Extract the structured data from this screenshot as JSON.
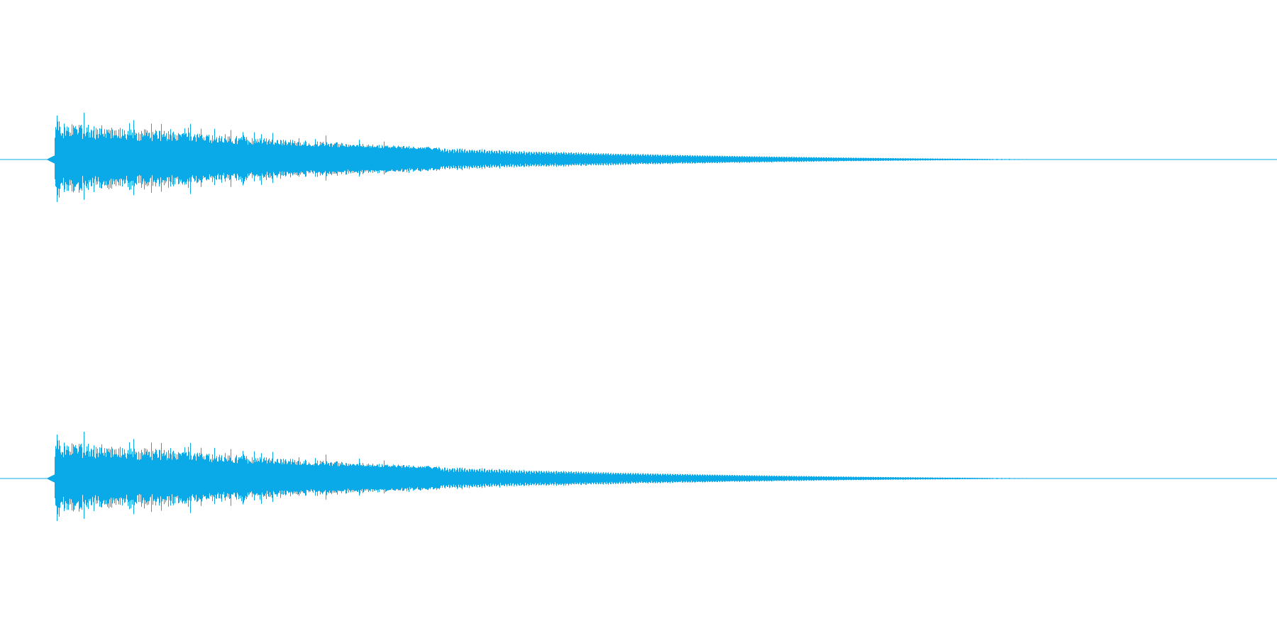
{
  "waveform": {
    "color": "#0aaae8",
    "channel_count": 2,
    "channels": [
      {
        "name": ""
      },
      {
        "name": ""
      }
    ],
    "envelope": {
      "onset_fraction": 0.043,
      "peak_amplitude": 0.55,
      "decay_end_fraction": 0.905,
      "shape": "exponential-decay"
    }
  }
}
